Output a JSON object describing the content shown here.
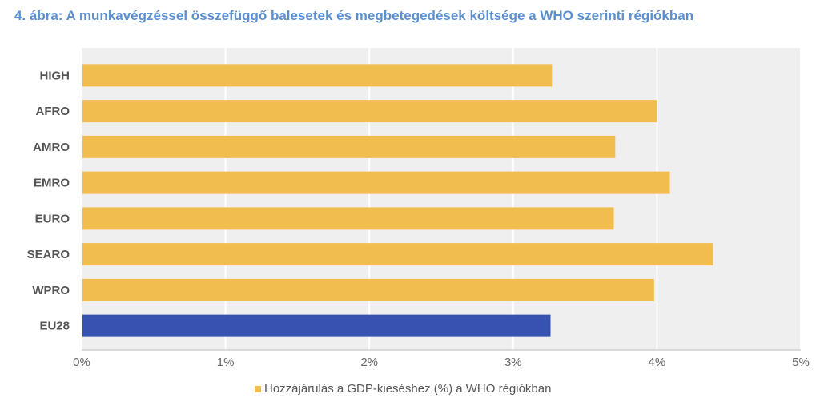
{
  "chart_data": {
    "type": "bar",
    "orientation": "horizontal",
    "title": "4. ábra: A munkavégzéssel összefüggő balesetek és megbetegedések költsége a WHO szerinti régiókban",
    "categories": [
      "HIGH",
      "AFRO",
      "AMRO",
      "EMRO",
      "EURO",
      "SEARO",
      "WPRO",
      "EU28"
    ],
    "values": [
      3.27,
      4.0,
      3.71,
      4.09,
      3.7,
      4.39,
      3.98,
      3.26
    ],
    "unit": "%",
    "xlim": [
      0,
      5
    ],
    "xticks": [
      "0%",
      "1%",
      "2%",
      "3%",
      "4%",
      "5%"
    ],
    "legend": "Hozzájárulás a GDP-kieséshez (%) a WHO régiókban",
    "legend_position": "bottom",
    "grid": true,
    "colors": {
      "default": "#f2bd4f",
      "highlight": "#3752b0",
      "plot_bg": "#efefef"
    },
    "highlight_category": "EU28"
  }
}
